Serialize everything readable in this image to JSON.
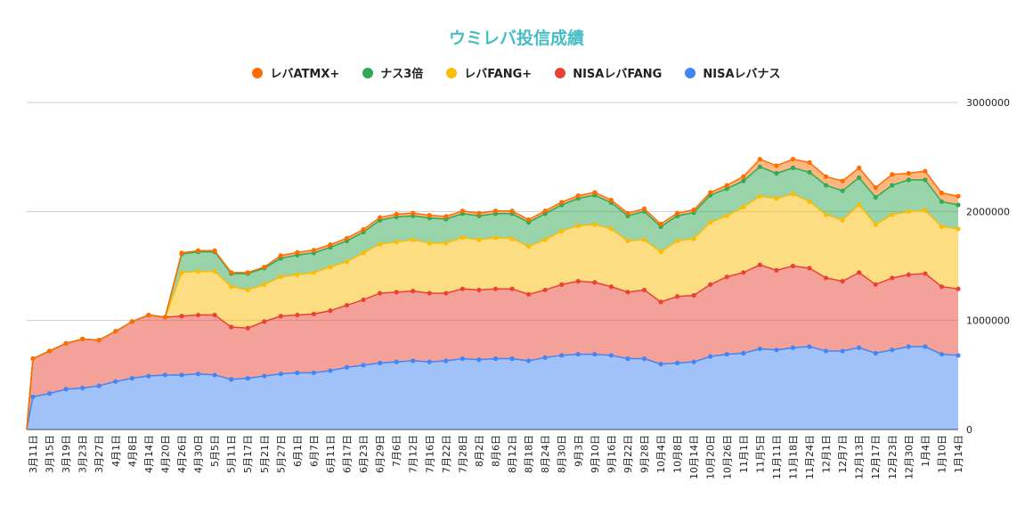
{
  "chart_data": {
    "type": "area",
    "stacked": true,
    "title": "ウミレバ投信成績",
    "title_color": "#46bdc6",
    "legend_position": "top",
    "grid": true,
    "ylim": [
      0,
      3000000
    ],
    "yticks": [
      "0",
      "1000000",
      "2000000",
      "3000000"
    ],
    "y_axis_side": "right",
    "categories": [
      "",
      "3月11日",
      "3月15日",
      "3月19日",
      "3月23日",
      "3月27日",
      "4月1日",
      "4月8日",
      "4月14日",
      "4月20日",
      "4月26日",
      "4月30日",
      "5月5日",
      "5月11日",
      "5月17日",
      "5月21日",
      "5月27日",
      "6月1日",
      "6月7日",
      "6月11日",
      "6月17日",
      "6月23日",
      "6月29日",
      "7月6日",
      "7月12日",
      "7月16日",
      "7月22日",
      "7月28日",
      "8月2日",
      "8月6日",
      "8月12日",
      "8月18日",
      "8月24日",
      "8月30日",
      "9月3日",
      "9月10日",
      "9月16日",
      "9月22日",
      "9月28日",
      "10月4日",
      "10月8日",
      "10月14日",
      "10月20日",
      "10月26日",
      "11月1日",
      "11月5日",
      "11月11日",
      "11月18日",
      "11月24日",
      "12月1日",
      "12月7日",
      "12月13日",
      "12月17日",
      "12月23日",
      "12月30日",
      "1月4日",
      "1月10日",
      "1月14日"
    ],
    "series": [
      {
        "name": "NISAレバナス",
        "color": "#4285f4",
        "values": [
          0,
          300000,
          330000,
          370000,
          380000,
          400000,
          440000,
          470000,
          490000,
          500000,
          500000,
          510000,
          500000,
          460000,
          470000,
          490000,
          510000,
          520000,
          520000,
          540000,
          570000,
          590000,
          610000,
          620000,
          630000,
          620000,
          630000,
          650000,
          640000,
          650000,
          650000,
          630000,
          660000,
          680000,
          690000,
          690000,
          680000,
          650000,
          650000,
          600000,
          610000,
          620000,
          670000,
          690000,
          700000,
          740000,
          730000,
          750000,
          760000,
          720000,
          720000,
          750000,
          700000,
          730000,
          760000,
          760000,
          690000,
          680000
        ]
      },
      {
        "name": "NISAレバFANG",
        "color": "#ea4335",
        "values": [
          0,
          350000,
          390000,
          420000,
          450000,
          420000,
          460000,
          520000,
          560000,
          530000,
          540000,
          540000,
          550000,
          480000,
          460000,
          500000,
          530000,
          530000,
          540000,
          550000,
          570000,
          600000,
          640000,
          640000,
          640000,
          630000,
          620000,
          640000,
          640000,
          640000,
          640000,
          610000,
          620000,
          650000,
          670000,
          660000,
          630000,
          610000,
          630000,
          570000,
          610000,
          610000,
          660000,
          710000,
          740000,
          770000,
          730000,
          750000,
          720000,
          670000,
          640000,
          690000,
          630000,
          660000,
          660000,
          670000,
          620000,
          610000
        ]
      },
      {
        "name": "レバFANG+",
        "color": "#fbbc04",
        "values": [
          0,
          0,
          0,
          0,
          0,
          0,
          0,
          0,
          0,
          0,
          400000,
          400000,
          400000,
          370000,
          350000,
          340000,
          360000,
          370000,
          380000,
          400000,
          400000,
          430000,
          450000,
          460000,
          470000,
          460000,
          460000,
          470000,
          460000,
          470000,
          460000,
          440000,
          460000,
          490000,
          510000,
          530000,
          530000,
          470000,
          460000,
          460000,
          510000,
          520000,
          570000,
          560000,
          600000,
          630000,
          660000,
          660000,
          610000,
          580000,
          560000,
          620000,
          550000,
          580000,
          580000,
          580000,
          550000,
          550000
        ]
      },
      {
        "name": "ナス3倍",
        "color": "#34a853",
        "values": [
          0,
          0,
          0,
          0,
          0,
          0,
          0,
          0,
          0,
          0,
          170000,
          180000,
          180000,
          120000,
          150000,
          150000,
          170000,
          180000,
          180000,
          180000,
          190000,
          190000,
          220000,
          230000,
          220000,
          230000,
          220000,
          220000,
          220000,
          220000,
          230000,
          220000,
          240000,
          240000,
          250000,
          270000,
          240000,
          230000,
          260000,
          230000,
          230000,
          240000,
          250000,
          250000,
          240000,
          270000,
          230000,
          240000,
          270000,
          270000,
          270000,
          250000,
          250000,
          270000,
          290000,
          280000,
          230000,
          220000
        ]
      },
      {
        "name": "レバATMX+",
        "color": "#ff6d01",
        "values": [
          0,
          0,
          0,
          0,
          0,
          0,
          0,
          0,
          0,
          0,
          10000,
          10000,
          10000,
          10000,
          10000,
          10000,
          25000,
          25000,
          25000,
          25000,
          25000,
          25000,
          25000,
          25000,
          25000,
          25000,
          25000,
          25000,
          25000,
          25000,
          25000,
          25000,
          25000,
          25000,
          25000,
          25000,
          25000,
          25000,
          25000,
          25000,
          25000,
          25000,
          25000,
          30000,
          40000,
          70000,
          70000,
          80000,
          90000,
          80000,
          90000,
          90000,
          90000,
          100000,
          60000,
          80000,
          80000,
          80000
        ]
      }
    ],
    "legend_order": [
      "レバATMX+",
      "ナス3倍",
      "レバFANG+",
      "NISAレバFANG",
      "NISAレバナス"
    ]
  }
}
